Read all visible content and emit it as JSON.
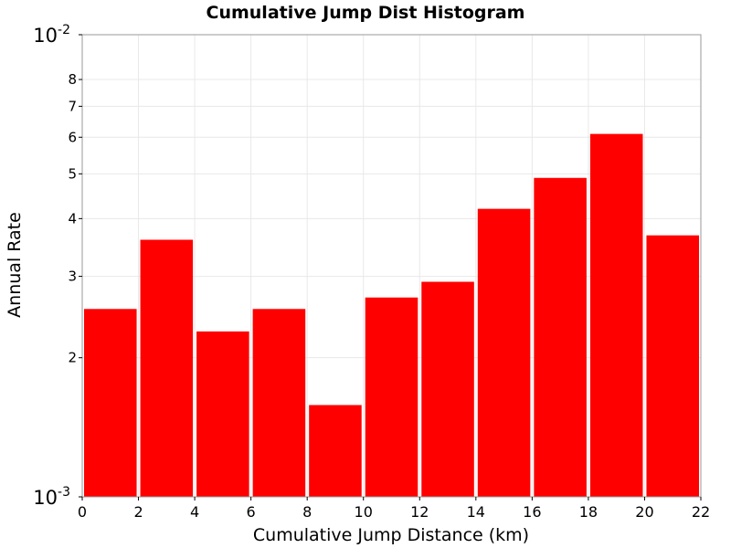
{
  "chart_data": {
    "type": "bar",
    "title": "Cumulative Jump Dist Histogram",
    "xlabel": "Cumulative Jump Distance (km)",
    "ylabel": "Annual Rate",
    "y_scale": "log",
    "xlim": [
      0,
      22
    ],
    "ylim": [
      0.001,
      0.01
    ],
    "bar_color": "#ff0000",
    "grid": true,
    "x_ticks": [
      0,
      2,
      4,
      6,
      8,
      10,
      12,
      14,
      16,
      18,
      20,
      22
    ],
    "x_tick_labels": [
      "0",
      "2",
      "4",
      "6",
      "8",
      "10",
      "12",
      "14",
      "16",
      "18",
      "20",
      "22"
    ],
    "y_decade_ticks": [
      {
        "value": 0.001,
        "base": "10",
        "exp": "-3"
      },
      {
        "value": 0.01,
        "base": "10",
        "exp": "-2"
      }
    ],
    "y_minor_ticks": [
      {
        "value": 0.002,
        "label": "2"
      },
      {
        "value": 0.003,
        "label": "3"
      },
      {
        "value": 0.004,
        "label": "4"
      },
      {
        "value": 0.005,
        "label": "5"
      },
      {
        "value": 0.006,
        "label": "6"
      },
      {
        "value": 0.007,
        "label": "7"
      },
      {
        "value": 0.008,
        "label": "8"
      }
    ],
    "bars": [
      {
        "x0": 0,
        "x1": 2,
        "value": 0.00255
      },
      {
        "x0": 2,
        "x1": 4,
        "value": 0.0036
      },
      {
        "x0": 4,
        "x1": 6,
        "value": 0.00228
      },
      {
        "x0": 6,
        "x1": 8,
        "value": 0.00255
      },
      {
        "x0": 8,
        "x1": 10,
        "value": 0.00158
      },
      {
        "x0": 10,
        "x1": 12,
        "value": 0.0027
      },
      {
        "x0": 12,
        "x1": 14,
        "value": 0.00292
      },
      {
        "x0": 14,
        "x1": 16,
        "value": 0.0042
      },
      {
        "x0": 16,
        "x1": 18,
        "value": 0.0049
      },
      {
        "x0": 18,
        "x1": 20,
        "value": 0.0061
      },
      {
        "x0": 20,
        "x1": 22,
        "value": 0.00368
      }
    ]
  }
}
